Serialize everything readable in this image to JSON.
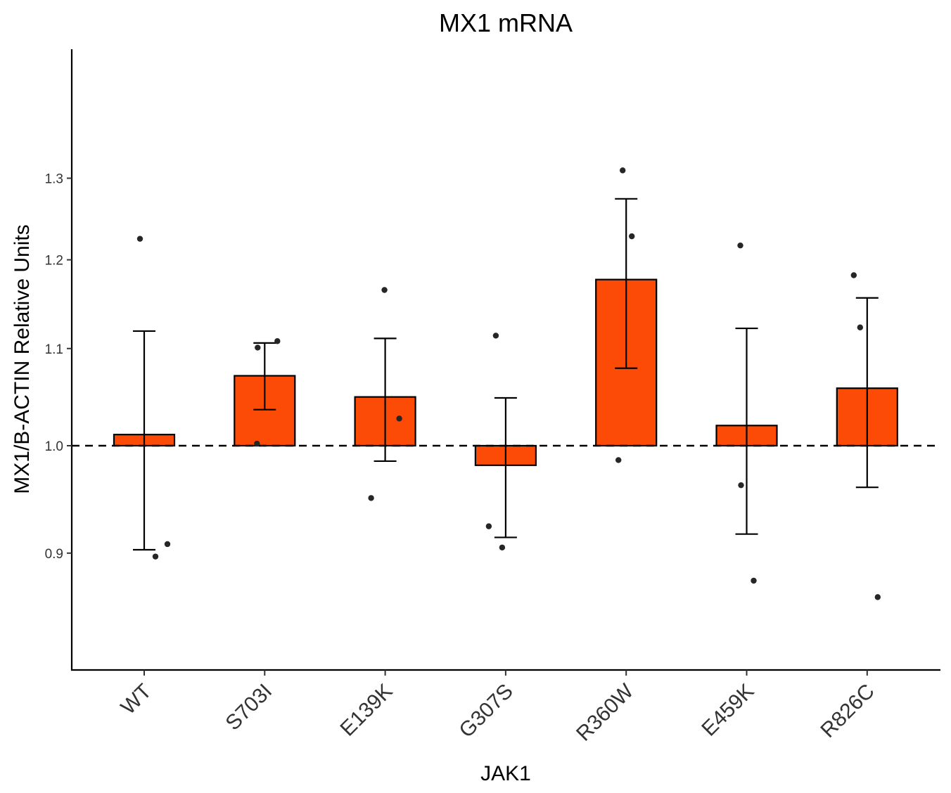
{
  "chart_data": {
    "type": "bar",
    "title": "MX1 mRNA",
    "xlabel": "JAK1",
    "ylabel": "MX1/B-ACTIN Relative Units",
    "y_scale": "log",
    "ylim": [
      0.862,
      1.335
    ],
    "yticks": [
      0.9,
      1.0,
      1.1,
      1.2,
      1.3
    ],
    "ytick_labels": [
      "0.9",
      "1.0",
      "1.1",
      "1.2",
      "1.3"
    ],
    "baseline": 1.0,
    "reference_line": {
      "y": 1.0,
      "style": "dashed"
    },
    "grid": false,
    "categories": [
      "WT",
      "S703I",
      "E139K",
      "G307S",
      "R360W",
      "E459K",
      "R826C"
    ],
    "values": [
      1.011,
      1.071,
      1.049,
      0.981,
      1.177,
      1.02,
      1.058
    ],
    "error_low": [
      0.903,
      1.036,
      0.985,
      0.914,
      1.079,
      0.917,
      0.96
    ],
    "error_high": [
      1.119,
      1.106,
      1.111,
      1.048,
      1.274,
      1.122,
      1.156
    ],
    "points": [
      [
        1.225,
        0.908,
        0.897
      ],
      [
        1.101,
        1.108,
        1.002
      ],
      [
        1.165,
        1.027,
        0.95
      ],
      [
        1.114,
        0.924,
        0.905
      ],
      [
        1.31,
        1.228,
        0.986
      ],
      [
        1.217,
        0.962,
        0.876
      ],
      [
        1.182,
        1.123,
        0.862
      ]
    ],
    "colors": {
      "bar_fill": "#FC4A07",
      "bar_stroke": "#000000",
      "point": "#262626",
      "axis": "#000000"
    }
  }
}
